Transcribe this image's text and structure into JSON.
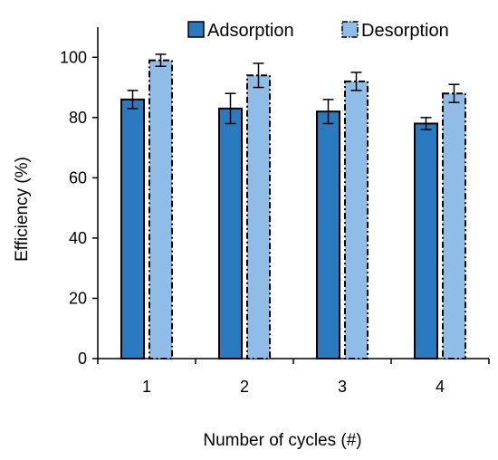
{
  "chart_data": {
    "type": "bar",
    "categories": [
      "1",
      "2",
      "3",
      "4"
    ],
    "series": [
      {
        "name": "Adsorption",
        "values": [
          86,
          83,
          82,
          78
        ],
        "errors": [
          3,
          5,
          4,
          2
        ],
        "color": "#2a7abf",
        "outline": "solid"
      },
      {
        "name": "Desorption",
        "values": [
          99,
          94,
          92,
          88
        ],
        "errors": [
          2,
          4,
          3,
          3
        ],
        "color": "#8fbde7",
        "outline": "dash-dot"
      }
    ],
    "xlabel": "Number of cycles (#)",
    "ylabel": "Efficiency (%)",
    "ylim": [
      0,
      110
    ],
    "yticks": [
      0,
      20,
      40,
      60,
      80,
      100
    ],
    "grid": false,
    "legend": "top"
  }
}
